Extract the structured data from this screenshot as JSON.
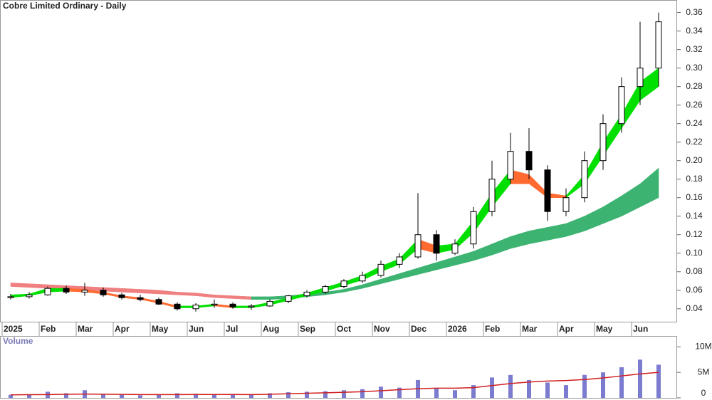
{
  "chart_data": {
    "type": "candlestick",
    "title": "Cobre Limited Ordinary - Daily",
    "categories": [
      "2025",
      null,
      "Feb",
      null,
      "Mar",
      null,
      "Apr",
      null,
      "May",
      null,
      "Jun",
      null,
      "Jul",
      null,
      "Aug",
      null,
      "Sep",
      null,
      "Oct",
      null,
      "Nov",
      null,
      "Dec",
      null,
      "2026",
      null,
      "Feb",
      null,
      "Mar",
      null,
      "Apr",
      null,
      "May",
      null,
      "Jun",
      null
    ],
    "open": [
      0.052,
      0.053,
      0.055,
      0.062,
      0.058,
      0.06,
      0.055,
      0.052,
      0.05,
      0.045,
      0.04,
      0.044,
      0.045,
      0.042,
      0.043,
      0.048,
      0.054,
      0.058,
      0.064,
      0.07,
      0.076,
      0.088,
      0.096,
      0.12,
      0.1,
      0.11,
      0.145,
      0.18,
      0.21,
      0.19,
      0.145,
      0.16,
      0.2,
      0.24,
      0.28,
      0.3
    ],
    "high": [
      0.056,
      0.058,
      0.064,
      0.065,
      0.068,
      0.063,
      0.057,
      0.055,
      0.052,
      0.047,
      0.046,
      0.05,
      0.047,
      0.045,
      0.05,
      0.055,
      0.06,
      0.066,
      0.072,
      0.08,
      0.092,
      0.1,
      0.165,
      0.125,
      0.115,
      0.15,
      0.2,
      0.23,
      0.235,
      0.195,
      0.17,
      0.21,
      0.25,
      0.29,
      0.35,
      0.36
    ],
    "low": [
      0.05,
      0.051,
      0.054,
      0.056,
      0.054,
      0.053,
      0.05,
      0.048,
      0.044,
      0.038,
      0.037,
      0.041,
      0.04,
      0.039,
      0.042,
      0.046,
      0.052,
      0.056,
      0.062,
      0.068,
      0.074,
      0.084,
      0.094,
      0.092,
      0.098,
      0.105,
      0.14,
      0.175,
      0.18,
      0.135,
      0.14,
      0.155,
      0.19,
      0.23,
      0.26,
      0.28
    ],
    "close": [
      0.053,
      0.055,
      0.062,
      0.058,
      0.06,
      0.055,
      0.052,
      0.05,
      0.045,
      0.04,
      0.044,
      0.045,
      0.042,
      0.043,
      0.048,
      0.054,
      0.058,
      0.064,
      0.07,
      0.076,
      0.088,
      0.096,
      0.12,
      0.1,
      0.11,
      0.145,
      0.18,
      0.21,
      0.19,
      0.145,
      0.16,
      0.2,
      0.24,
      0.28,
      0.3,
      0.35
    ],
    "up_color": "#ffffff",
    "down_color": "#000000",
    "ylim": [
      0.026,
      0.372
    ],
    "yticks": [
      0.04,
      0.06,
      0.08,
      {
        "value": 0.1,
        "label": "0.10"
      },
      0.12,
      0.14,
      0.16,
      0.18,
      {
        "value": 0.2,
        "label": "0.20"
      },
      0.22,
      0.24,
      0.26,
      0.28,
      {
        "value": 0.3,
        "label": "0.30"
      },
      0.32,
      0.34,
      0.36
    ],
    "bands": [
      {
        "rising_color": "#3cb371",
        "falling_color": "#f08080",
        "upper": [
          0.068,
          0.067,
          0.066,
          0.065,
          0.064,
          0.063,
          0.062,
          0.061,
          0.06,
          0.058,
          0.057,
          0.055,
          0.054,
          0.053,
          0.053,
          0.054,
          0.056,
          0.058,
          0.061,
          0.066,
          0.072,
          0.078,
          0.084,
          0.09,
          0.096,
          0.102,
          0.11,
          0.118,
          0.124,
          0.128,
          0.132,
          0.14,
          0.15,
          0.162,
          0.175,
          0.192
        ],
        "lower": [
          0.064,
          0.063,
          0.062,
          0.061,
          0.06,
          0.059,
          0.058,
          0.057,
          0.056,
          0.055,
          0.054,
          0.052,
          0.051,
          0.05,
          0.05,
          0.051,
          0.053,
          0.055,
          0.058,
          0.062,
          0.067,
          0.072,
          0.077,
          0.082,
          0.087,
          0.092,
          0.098,
          0.105,
          0.11,
          0.114,
          0.118,
          0.124,
          0.132,
          0.14,
          0.15,
          0.16
        ]
      },
      {
        "rising_color": "#00e000",
        "falling_color": "#ff6a30",
        "upper": [
          0.055,
          0.056,
          0.062,
          0.062,
          0.061,
          0.058,
          0.054,
          0.052,
          0.048,
          0.043,
          0.043,
          0.045,
          0.043,
          0.043,
          0.047,
          0.052,
          0.057,
          0.063,
          0.069,
          0.076,
          0.086,
          0.094,
          0.115,
          0.108,
          0.11,
          0.135,
          0.165,
          0.19,
          0.185,
          0.165,
          0.162,
          0.185,
          0.22,
          0.25,
          0.285,
          0.3
        ],
        "lower": [
          0.052,
          0.054,
          0.058,
          0.059,
          0.058,
          0.056,
          0.052,
          0.05,
          0.046,
          0.041,
          0.041,
          0.043,
          0.041,
          0.041,
          0.044,
          0.049,
          0.054,
          0.059,
          0.065,
          0.071,
          0.08,
          0.088,
          0.105,
          0.1,
          0.104,
          0.122,
          0.15,
          0.175,
          0.175,
          0.16,
          0.16,
          0.175,
          0.205,
          0.235,
          0.265,
          0.28
        ]
      }
    ],
    "volume": {
      "label": "Volume",
      "color": "#7b7bd0",
      "average_color": "#d02020",
      "values": [
        600000,
        700000,
        1200000,
        900000,
        1500000,
        700000,
        600000,
        500000,
        600000,
        900000,
        800000,
        700000,
        600000,
        700000,
        900000,
        1100000,
        1200000,
        1300000,
        1500000,
        1700000,
        2200000,
        2000000,
        3500000,
        1800000,
        1500000,
        2500000,
        4000000,
        4500000,
        3500000,
        3000000,
        2500000,
        4500000,
        5000000,
        6000000,
        7500000,
        6500000
      ],
      "average": [
        600000,
        620000,
        650000,
        700000,
        750000,
        720000,
        680000,
        650000,
        640000,
        650000,
        660000,
        670000,
        660000,
        650000,
        700000,
        800000,
        900000,
        1000000,
        1100000,
        1200000,
        1400000,
        1600000,
        1800000,
        1900000,
        1900000,
        2000000,
        2400000,
        2800000,
        3100000,
        3300000,
        3400000,
        3600000,
        3900000,
        4300000,
        4700000,
        5000000
      ],
      "ylim": [
        0,
        12000000
      ],
      "yticks": [
        0,
        {
          "value": 5000000,
          "label": "5M"
        },
        {
          "value": 10000000,
          "label": "10M"
        }
      ]
    }
  }
}
